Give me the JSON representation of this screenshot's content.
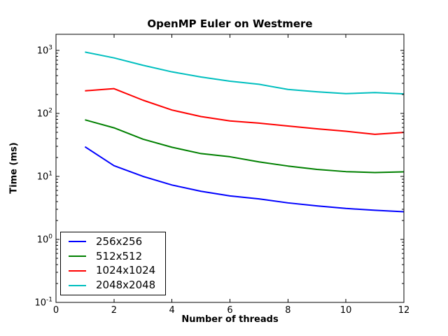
{
  "chart_data": {
    "type": "line",
    "title": "OpenMP Euler on Westmere",
    "xlabel": "Number of threads",
    "ylabel": "Time (ms)",
    "yscale": "log",
    "xlim": [
      0,
      12
    ],
    "ylim": [
      0.1,
      1800
    ],
    "xticks": [
      0,
      2,
      4,
      6,
      8,
      10,
      12
    ],
    "ytick_exponents": [
      -1,
      0,
      1,
      2,
      3
    ],
    "grid": false,
    "legend_position": "lower-left",
    "x": [
      1,
      2,
      3,
      4,
      5,
      6,
      7,
      8,
      9,
      10,
      11,
      12
    ],
    "series": [
      {
        "name": "256x256",
        "color": "#0000ff",
        "values": [
          29.5,
          14.8,
          10,
          7.3,
          5.8,
          4.9,
          4.4,
          3.8,
          3.4,
          3.1,
          2.9,
          2.75
        ]
      },
      {
        "name": "512x512",
        "color": "#008000",
        "values": [
          79,
          59,
          39,
          29,
          23,
          20.5,
          17,
          14.6,
          12.9,
          11.9,
          11.5,
          11.8
        ]
      },
      {
        "name": "1024x1024",
        "color": "#ff0000",
        "values": [
          228,
          247,
          162,
          113,
          89,
          76,
          70,
          63,
          57,
          52,
          46.5,
          50
        ]
      },
      {
        "name": "2048x2048",
        "color": "#00bfbf",
        "values": [
          940,
          760,
          580,
          456,
          378,
          324,
          290,
          240,
          220,
          206,
          214,
          204
        ]
      }
    ]
  }
}
